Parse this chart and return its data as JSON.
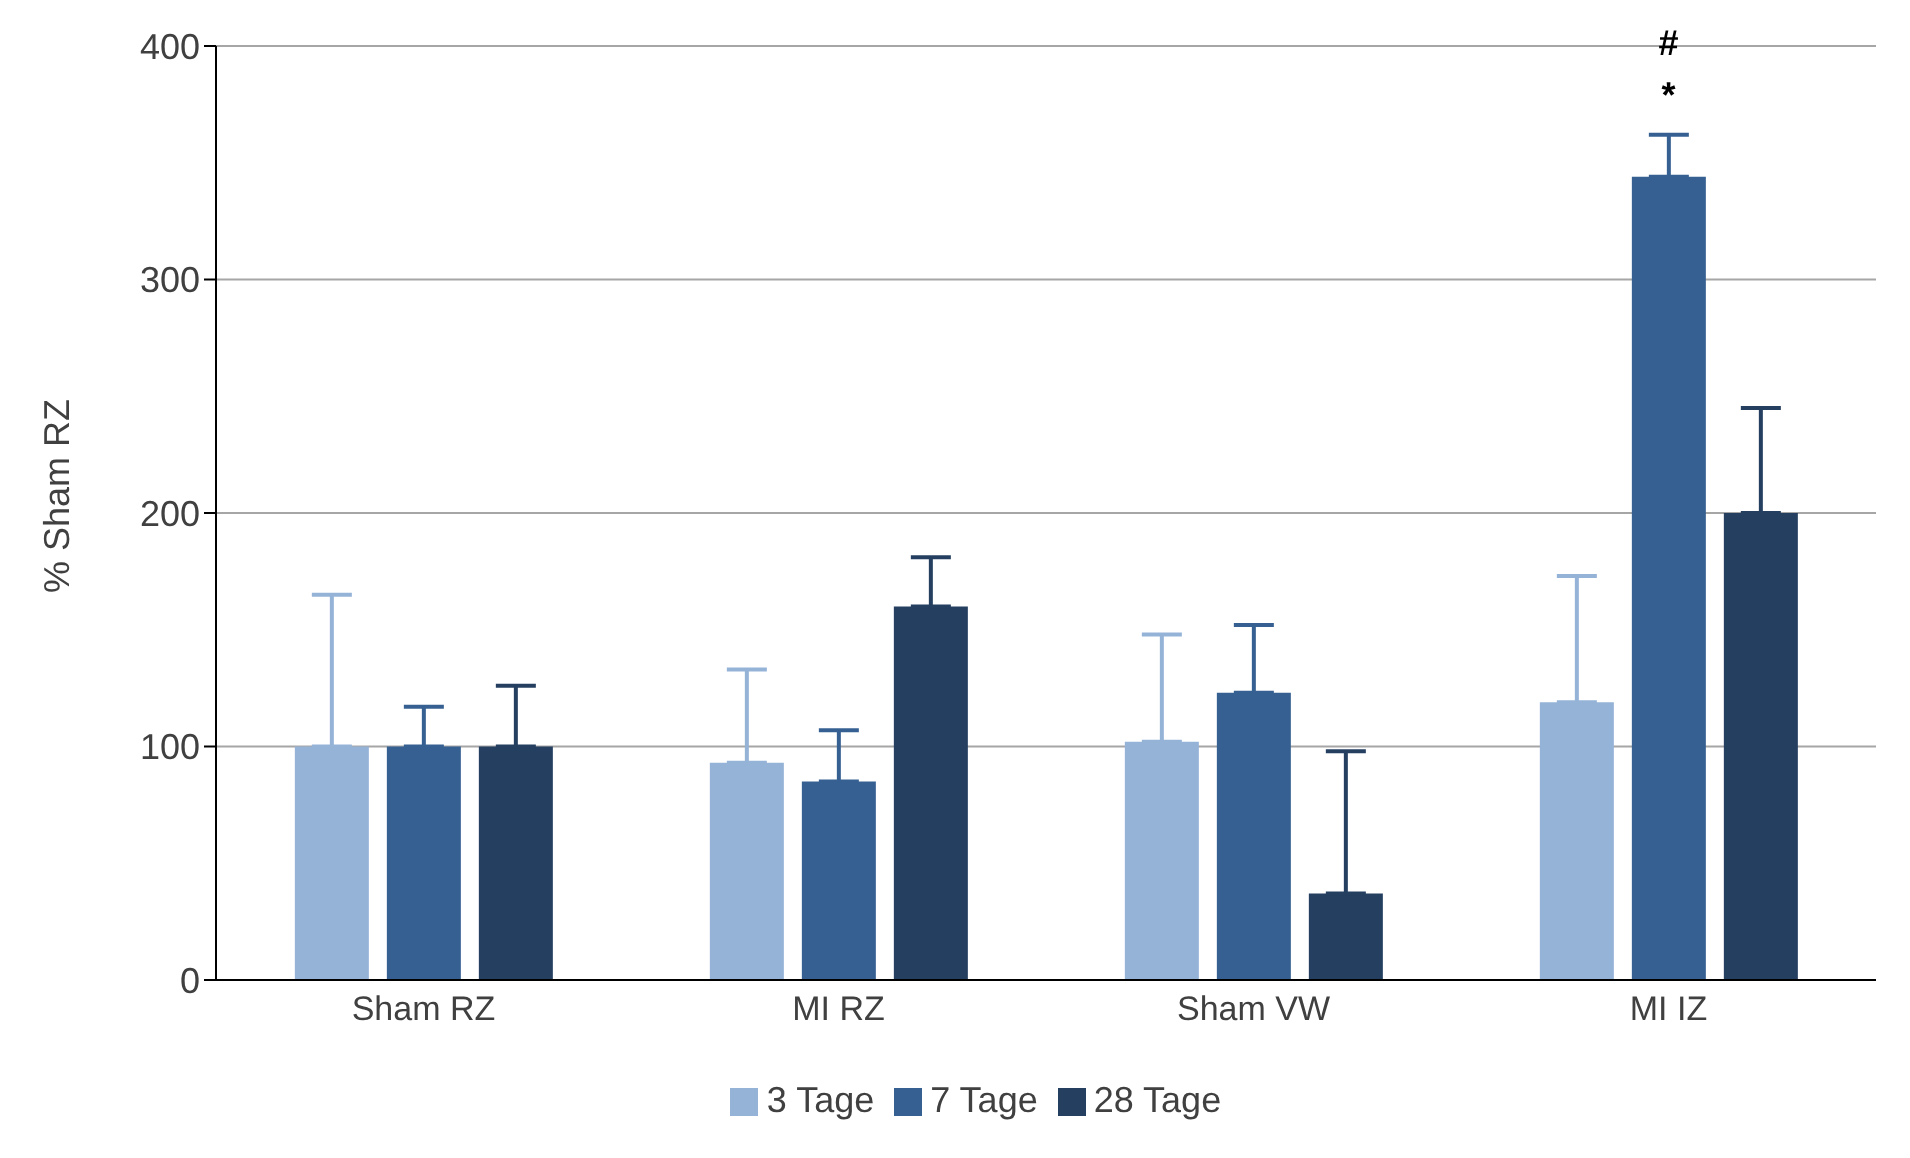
{
  "chart_data": {
    "type": "bar",
    "ylabel": "% Sham RZ",
    "categories": [
      "Sham RZ",
      "MI RZ",
      "Sham VW",
      "MI IZ"
    ],
    "series": [
      {
        "name": "3 Tage",
        "color": "#95b3d7",
        "values": [
          100,
          93,
          102,
          119
        ],
        "errors": [
          65,
          40,
          46,
          54
        ]
      },
      {
        "name": "7 Tage",
        "color": "#366092",
        "values": [
          100,
          85,
          123,
          344
        ],
        "errors": [
          17,
          22,
          29,
          18
        ]
      },
      {
        "name": "28 Tage",
        "color": "#243f60",
        "values": [
          100,
          160,
          37,
          200
        ],
        "errors": [
          26,
          21,
          61,
          45
        ]
      }
    ],
    "ylim": [
      0,
      400
    ],
    "yticks": [
      0,
      100,
      200,
      300,
      400
    ],
    "grid": "y",
    "legend": "bottom",
    "annotations": [
      "*",
      "#"
    ]
  }
}
